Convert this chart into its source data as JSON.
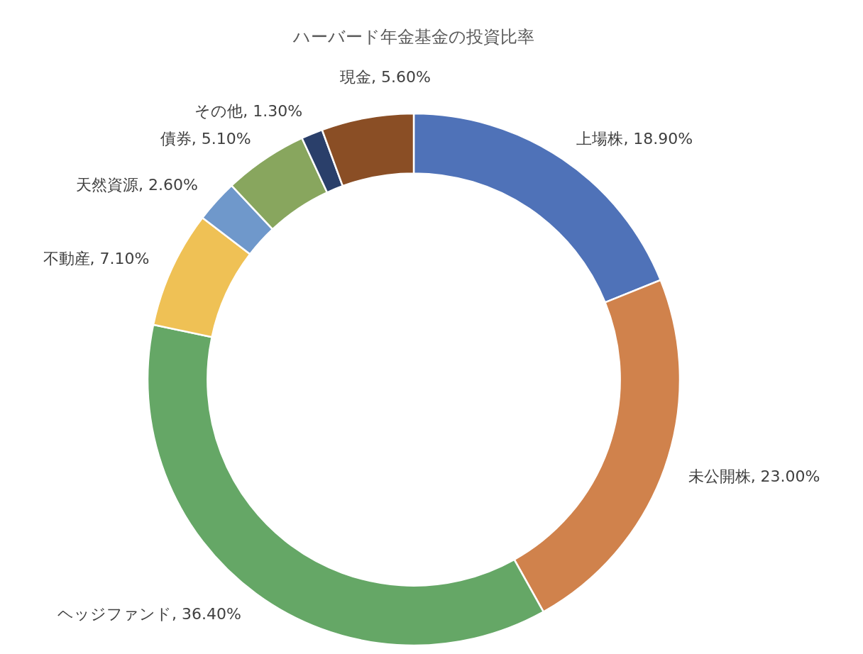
{
  "chart_data": {
    "type": "donut",
    "title": "ハーバード年金基金の投資比率",
    "categories": [
      "上場株",
      "未公開株",
      "ヘッジファンド",
      "不動産",
      "天然資源",
      "債券",
      "その他",
      "現金"
    ],
    "values": [
      18.9,
      23.0,
      36.4,
      7.1,
      2.6,
      5.1,
      1.3,
      5.6
    ],
    "value_labels": [
      "18.90%",
      "23.00%",
      "36.40%",
      "7.10%",
      "2.60%",
      "5.10%",
      "1.30%",
      "5.60%"
    ],
    "colors": [
      "#4f72b8",
      "#d0824c",
      "#65a766",
      "#efc155",
      "#6f98cb",
      "#88a65e",
      "#2a3f6a",
      "#8a4e25"
    ]
  }
}
